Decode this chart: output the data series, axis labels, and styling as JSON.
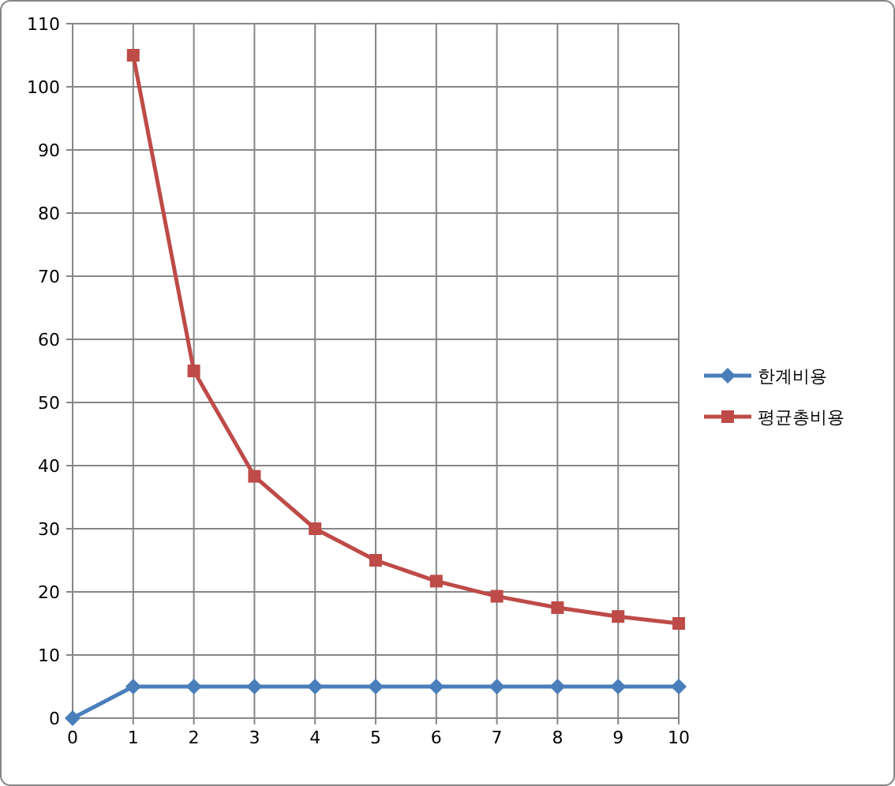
{
  "chart_data": {
    "type": "line",
    "categories": [
      "0",
      "1",
      "2",
      "3",
      "4",
      "5",
      "6",
      "7",
      "8",
      "9",
      "10"
    ],
    "series": [
      {
        "name": "한계비용",
        "color": "#4a7ebb",
        "marker": "diamond",
        "values": [
          0,
          5,
          5,
          5,
          5,
          5,
          5,
          5,
          5,
          5,
          5
        ]
      },
      {
        "name": "평균총비용",
        "color": "#be4b48",
        "marker": "square",
        "values": [
          null,
          105,
          55,
          38.3,
          30,
          25,
          21.7,
          19.3,
          17.5,
          16.1,
          15
        ]
      }
    ],
    "ylim": [
      0,
      110
    ],
    "yticks": [
      0,
      10,
      20,
      30,
      40,
      50,
      60,
      70,
      80,
      90,
      100,
      110
    ],
    "grid": true,
    "legend": "right",
    "line_style": "solid"
  }
}
